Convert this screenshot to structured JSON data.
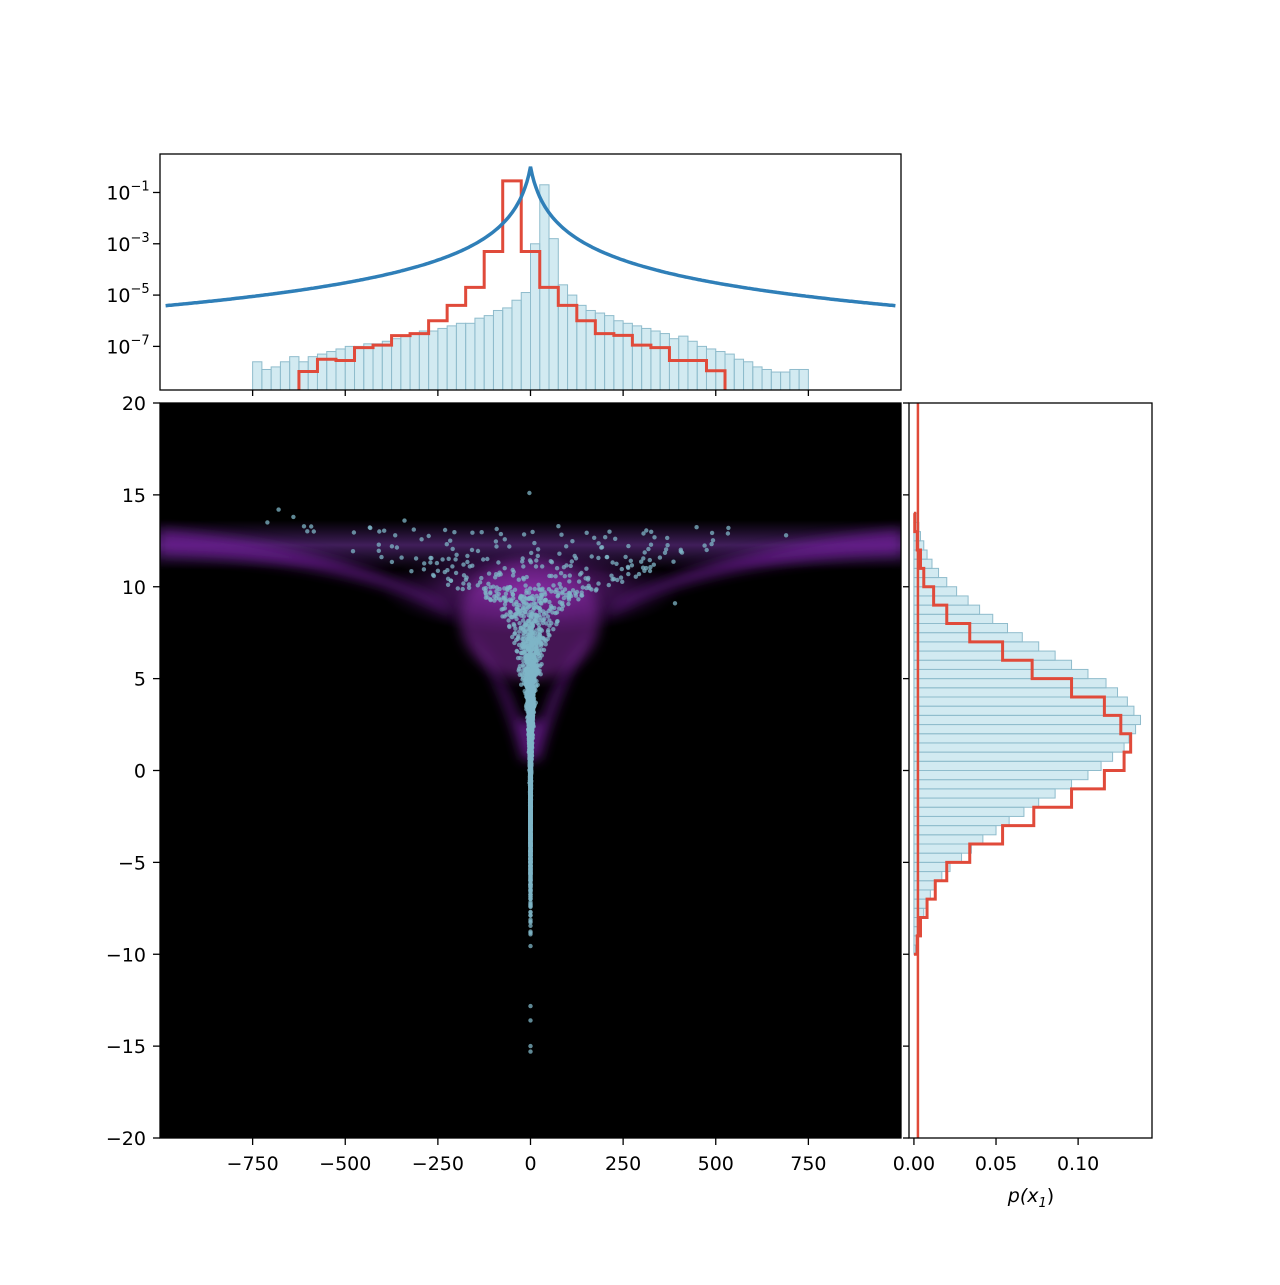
{
  "chart_data": [
    {
      "id": "top-marginal",
      "type": "histogram+line",
      "yscale": "log",
      "xlim": [
        -1000,
        1000
      ],
      "ylim_exp": [
        -8.7,
        0.5
      ],
      "y_ticks": [
        {
          "exp": -1,
          "label": "10",
          "sup": "−1"
        },
        {
          "exp": -3,
          "label": "10",
          "sup": "−3"
        },
        {
          "exp": -5,
          "label": "10",
          "sup": "−5"
        },
        {
          "exp": -7,
          "label": "10",
          "sup": "−7"
        }
      ],
      "x_ticks": [
        -750,
        -500,
        -250,
        0,
        250,
        500,
        750
      ],
      "bin_width": 25,
      "bins_filled": {
        "start": -750,
        "log10_density": [
          -7.6,
          -7.9,
          -7.8,
          -7.6,
          -7.4,
          -7.6,
          -7.4,
          -7.3,
          -7.2,
          -7.1,
          -7.0,
          -7.0,
          -6.9,
          -6.9,
          -6.8,
          -6.7,
          -6.6,
          -6.5,
          -6.4,
          -6.4,
          -6.3,
          -6.2,
          -6.1,
          -6.1,
          -5.9,
          -5.8,
          -5.6,
          -5.5,
          -5.2,
          -4.9,
          -3.0,
          -0.7,
          -2.8,
          -4.6,
          -5.0,
          -5.4,
          -5.6,
          -5.7,
          -5.8,
          -6.0,
          -6.1,
          -6.2,
          -6.3,
          -6.4,
          -6.5,
          -6.7,
          -6.6,
          -6.8,
          -7.0,
          -7.1,
          -7.2,
          -7.3,
          -7.5,
          -7.6,
          -7.8,
          -7.9,
          -8.0,
          -8.0,
          -7.9,
          -7.9
        ]
      },
      "bins_outline": {
        "start": -675,
        "width": 50,
        "log10_density": [
          -9.0,
          -7.98,
          -7.5,
          -7.55,
          -7.05,
          -6.95,
          -6.58,
          -6.5,
          -6.0,
          -5.4,
          -4.7,
          -3.3,
          -0.55,
          -3.3,
          -4.7,
          -5.4,
          -6.0,
          -6.5,
          -6.57,
          -6.95,
          -7.05,
          -7.55,
          -7.55,
          -7.95,
          -9.0,
          -9.0
        ],
        "gaps": [
          [
            -725,
            -675
          ],
          [
            -625,
            -600
          ],
          [
            550,
            575
          ],
          [
            600,
            625
          ]
        ]
      },
      "density_curve": {
        "peak_log10": 0.0,
        "x_range": [
          -985,
          985
        ]
      },
      "colors": {
        "fill": "#add8e6",
        "outline": "#e04a3a",
        "curve": "#2f7fb8"
      }
    },
    {
      "id": "main-joint",
      "type": "scatter+heatmap",
      "xlim": [
        -1000,
        1000
      ],
      "ylim": [
        -20,
        20
      ],
      "x_ticks": [
        -750,
        -500,
        -250,
        0,
        250,
        500,
        750
      ],
      "x_tick_labels": [
        "−750",
        "−500",
        "−250",
        "0",
        "250",
        "500",
        "750"
      ],
      "y_ticks": [
        -20,
        -15,
        -10,
        -5,
        0,
        5,
        10,
        15,
        20
      ],
      "y_tick_labels": [
        "−20",
        "−15",
        "−10",
        "−5",
        "0",
        "5",
        "10",
        "15",
        "20"
      ],
      "background": "#000000",
      "density_color": "#8a2ba8",
      "point_color": "#7fb6c7",
      "notable_points": [
        {
          "x": -3,
          "y": 15.1
        },
        {
          "x": -680,
          "y": 14.2
        },
        {
          "x": -710,
          "y": 13.5
        },
        {
          "x": -640,
          "y": 13.8
        },
        {
          "x": -340,
          "y": 13.6
        },
        {
          "x": 690,
          "y": 12.8
        },
        {
          "x": 390,
          "y": 9.1
        },
        {
          "x": 0,
          "y": -15.0
        },
        {
          "x": 0,
          "y": -15.3
        },
        {
          "x": 0,
          "y": -13.6
        }
      ]
    },
    {
      "id": "right-marginal",
      "type": "histogram",
      "orientation": "horizontal",
      "xlabel": "p(x",
      "xlabel_sub": "1",
      "xlabel_close": ")",
      "xlim": [
        -0.003,
        0.145
      ],
      "ylim": [
        -20,
        20
      ],
      "x_ticks": [
        0.0,
        0.05,
        0.1
      ],
      "x_tick_labels": [
        "0.00",
        "0.05",
        "0.10"
      ],
      "bin_width": 0.5,
      "bins_filled": {
        "start": -10,
        "values": [
          0.001,
          0.002,
          0.003,
          0.004,
          0.006,
          0.008,
          0.01,
          0.013,
          0.017,
          0.022,
          0.029,
          0.035,
          0.042,
          0.05,
          0.058,
          0.067,
          0.076,
          0.086,
          0.096,
          0.106,
          0.114,
          0.121,
          0.128,
          0.131,
          0.135,
          0.138,
          0.134,
          0.13,
          0.124,
          0.117,
          0.106,
          0.096,
          0.086,
          0.076,
          0.066,
          0.057,
          0.048,
          0.04,
          0.033,
          0.026,
          0.02,
          0.015,
          0.011,
          0.008,
          0.006,
          0.004,
          0.003,
          0.002
        ]
      },
      "bins_outline": {
        "start": -10,
        "width": 1,
        "values": [
          0.002,
          0.004,
          0.008,
          0.013,
          0.02,
          0.034,
          0.054,
          0.073,
          0.096,
          0.116,
          0.128,
          0.132,
          0.126,
          0.116,
          0.096,
          0.072,
          0.054,
          0.034,
          0.02,
          0.012,
          0.006,
          0.004,
          0.002,
          0.0005
        ]
      },
      "colors": {
        "fill": "#add8e6",
        "outline": "#e04a3a",
        "vline": "#e04a3a"
      }
    }
  ]
}
